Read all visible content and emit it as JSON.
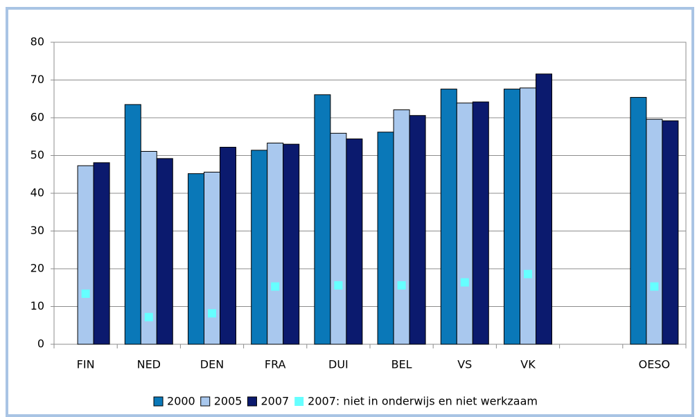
{
  "chart_data": {
    "type": "bar",
    "categories": [
      "FIN",
      "NED",
      "DEN",
      "FRA",
      "DUI",
      "BEL",
      "VS",
      "VK",
      null,
      "OESO"
    ],
    "series": [
      {
        "name": "2000",
        "color": "#0a78b8",
        "values": [
          null,
          63.5,
          45.2,
          51.4,
          66.1,
          56.2,
          67.6,
          67.6,
          null,
          65.4
        ]
      },
      {
        "name": "2005",
        "color": "#a9c8ee",
        "values": [
          47.3,
          51.1,
          45.6,
          53.3,
          55.9,
          62.1,
          63.9,
          67.9,
          null,
          59.6
        ]
      },
      {
        "name": "2007",
        "color": "#0b1a6e",
        "values": [
          48.1,
          49.2,
          52.2,
          53.0,
          54.4,
          60.6,
          64.2,
          71.6,
          null,
          59.2
        ]
      },
      {
        "name": "2007: niet in onderwijs en niet werkzaam",
        "color": "#66ffff",
        "marker": "square",
        "values": [
          13.4,
          7.2,
          8.2,
          15.3,
          15.6,
          15.6,
          16.4,
          18.6,
          null,
          15.3
        ]
      }
    ],
    "ylim": [
      0,
      80
    ],
    "yticks": [
      0,
      10,
      20,
      30,
      40,
      50,
      60,
      70,
      80
    ],
    "grid": true,
    "legend": "bottom"
  }
}
